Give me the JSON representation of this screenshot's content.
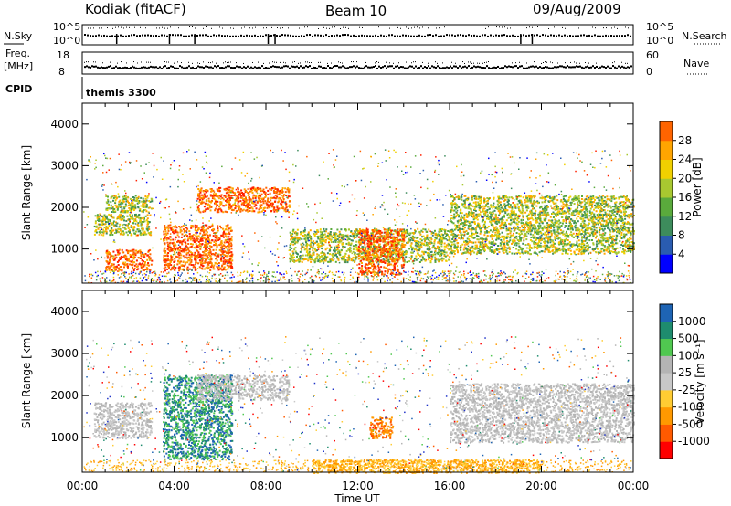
{
  "header": {
    "station": "Kodiak (fitACF)",
    "beam": "Beam 10",
    "date": "09/Aug/2009"
  },
  "top_panels": {
    "nsky_label": "N.Sky",
    "nsky_ticks": [
      "10^5",
      "10^0"
    ],
    "nsearch_label": "N.Search",
    "nsearch_ticks": [
      "10^5",
      "10^0"
    ],
    "freq_label_1": "Freq.",
    "freq_label_2": "[MHz]",
    "freq_ticks": [
      "18",
      "8"
    ],
    "nave_label": "Nave",
    "nave_ticks": [
      "60",
      "0"
    ],
    "cpid_label": "CPID",
    "cpid_value": "themis 3300"
  },
  "colors": {
    "power": [
      "#0000ff",
      "#2a5cb0",
      "#3d8c5c",
      "#5aaa3c",
      "#a8c830",
      "#f0d000",
      "#ffa500",
      "#ff6400",
      "#ff2000"
    ],
    "velocity": [
      "#ff0000",
      "#ff5a00",
      "#ff9900",
      "#ffcc33",
      "#c8c8c8",
      "#b4b4b4",
      "#50c850",
      "#1e8c6e",
      "#1e64b4",
      "#1e32c8"
    ]
  },
  "chart_data": [
    {
      "type": "heatmap",
      "name": "power-panel",
      "xlabel": "",
      "ylabel": "Slant Range [km]",
      "ylim": [
        180,
        4500
      ],
      "xlim": [
        0,
        24
      ],
      "yticks": [
        "1000",
        "2000",
        "3000",
        "4000"
      ],
      "colorbar_label": "Power [dB]",
      "colorbar_ticks": [
        "4",
        "8",
        "12",
        "16",
        "20",
        "24",
        "28"
      ],
      "regions": [
        {
          "x": [
            0.5,
            3.0
          ],
          "y": [
            1350,
            1850
          ],
          "level": "mid"
        },
        {
          "x": [
            1.0,
            3.0
          ],
          "y": [
            1900,
            2300
          ],
          "level": "mid"
        },
        {
          "x": [
            1.0,
            3.0
          ],
          "y": [
            500,
            1000
          ],
          "level": "high"
        },
        {
          "x": [
            3.5,
            6.5
          ],
          "y": [
            500,
            1600
          ],
          "level": "high"
        },
        {
          "x": [
            5.0,
            9.0
          ],
          "y": [
            1900,
            2500
          ],
          "level": "high"
        },
        {
          "x": [
            9.0,
            16.0
          ],
          "y": [
            700,
            1500
          ],
          "level": "mid"
        },
        {
          "x": [
            12.0,
            14.0
          ],
          "y": [
            400,
            1500
          ],
          "level": "high"
        },
        {
          "x": [
            16.0,
            24.0
          ],
          "y": [
            900,
            2300
          ],
          "level": "mid"
        }
      ]
    },
    {
      "type": "heatmap",
      "name": "velocity-panel",
      "xlabel": "Time UT",
      "ylabel": "Slant Range [km]",
      "ylim": [
        180,
        4500
      ],
      "xlim": [
        0,
        24
      ],
      "xticks": [
        "00:00",
        "04:00",
        "08:00",
        "12:00",
        "16:00",
        "20:00",
        "00:00"
      ],
      "yticks": [
        "1000",
        "2000",
        "3000",
        "4000"
      ],
      "colorbar_label": "Velocity [m s⁻¹]",
      "colorbar_ticks": [
        "-1000",
        "-500",
        "-100",
        "-25",
        "25",
        "100",
        "500",
        "1000"
      ],
      "regions": [
        {
          "x": [
            0.5,
            3.0
          ],
          "y": [
            1000,
            1850
          ],
          "level": "ground"
        },
        {
          "x": [
            3.5,
            6.5
          ],
          "y": [
            500,
            2500
          ],
          "level": "toward"
        },
        {
          "x": [
            5.0,
            9.0
          ],
          "y": [
            1900,
            2500
          ],
          "level": "ground"
        },
        {
          "x": [
            12.5,
            13.5
          ],
          "y": [
            1000,
            1500
          ],
          "level": "away"
        },
        {
          "x": [
            16.0,
            24.0
          ],
          "y": [
            900,
            2300
          ],
          "level": "ground"
        },
        {
          "x": [
            10.0,
            20.0
          ],
          "y": [
            180,
            500
          ],
          "level": "away-weak"
        }
      ]
    }
  ]
}
